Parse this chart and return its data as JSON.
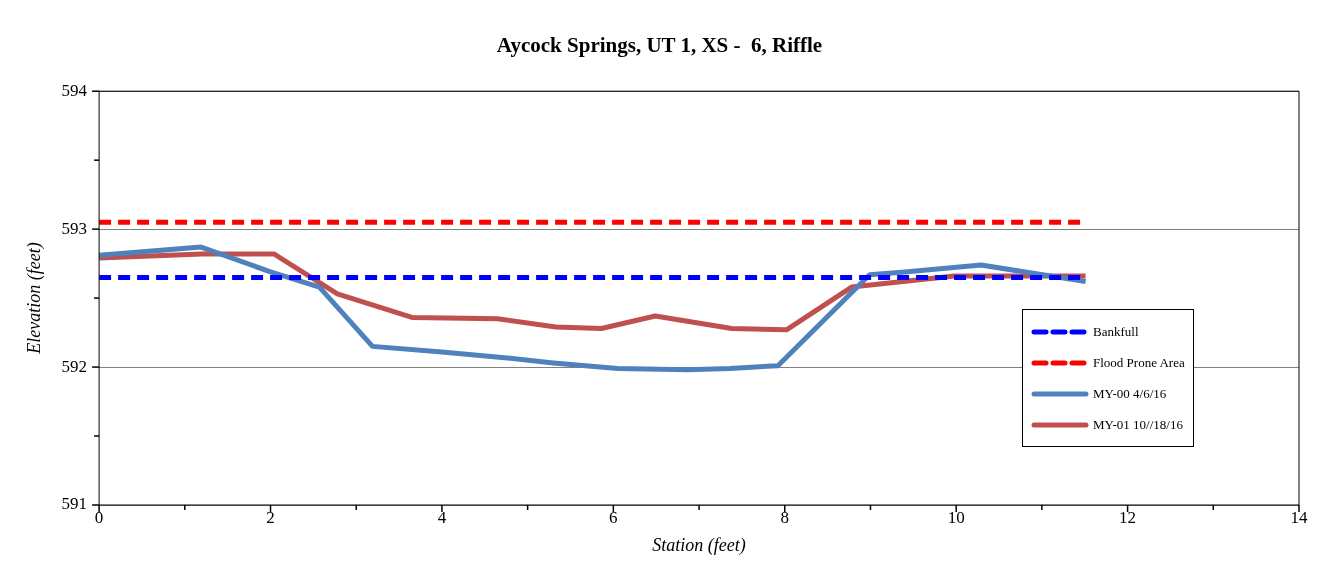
{
  "chart_data": {
    "type": "line",
    "title": "Aycock Springs, UT 1, XS -  6, Riffle",
    "xlabel": "Station (feet)",
    "ylabel": "Elevation (feet)",
    "xlim": [
      0,
      14
    ],
    "xticks": [
      0,
      2,
      4,
      6,
      8,
      10,
      12,
      14
    ],
    "ylim": [
      591,
      594
    ],
    "yticks": [
      591,
      592,
      593,
      594
    ],
    "grid": "y",
    "legend": "right",
    "marker": "none",
    "series": [
      {
        "name": "Bankfull",
        "color": "#0000ff",
        "line_style": "dashed",
        "x": [
          0,
          11.5
        ],
        "values": [
          592.65,
          592.65
        ]
      },
      {
        "name": "Flood Prone Area",
        "color": "#ff0000",
        "line_style": "dashed",
        "x": [
          0,
          11.5
        ],
        "values": [
          593.05,
          593.05
        ]
      },
      {
        "name": "MY-00 4/6/16",
        "color": "#4f81bd",
        "line_style": "solid",
        "x": [
          0,
          1.19,
          2.0,
          2.57,
          3.19,
          4.0,
          4.7,
          5.3,
          6.05,
          6.87,
          7.36,
          7.92,
          8.99,
          9.4,
          10.29,
          11.51
        ],
        "values": [
          592.81,
          592.87,
          592.69,
          592.58,
          592.15,
          592.11,
          592.07,
          592.03,
          591.99,
          591.98,
          591.99,
          592.01,
          592.67,
          592.69,
          592.74,
          592.62
        ]
      },
      {
        "name": "MY-01 10//18/16",
        "color": "#c0504d",
        "line_style": "solid",
        "x": [
          0,
          1.2,
          2.04,
          2.78,
          3.65,
          4.65,
          5.33,
          5.86,
          6.49,
          7.38,
          8.02,
          8.78,
          9.98,
          11.51
        ],
        "values": [
          592.79,
          592.82,
          592.82,
          592.53,
          592.36,
          592.35,
          592.29,
          592.28,
          592.37,
          592.28,
          592.27,
          592.58,
          592.66,
          592.66
        ]
      }
    ]
  }
}
